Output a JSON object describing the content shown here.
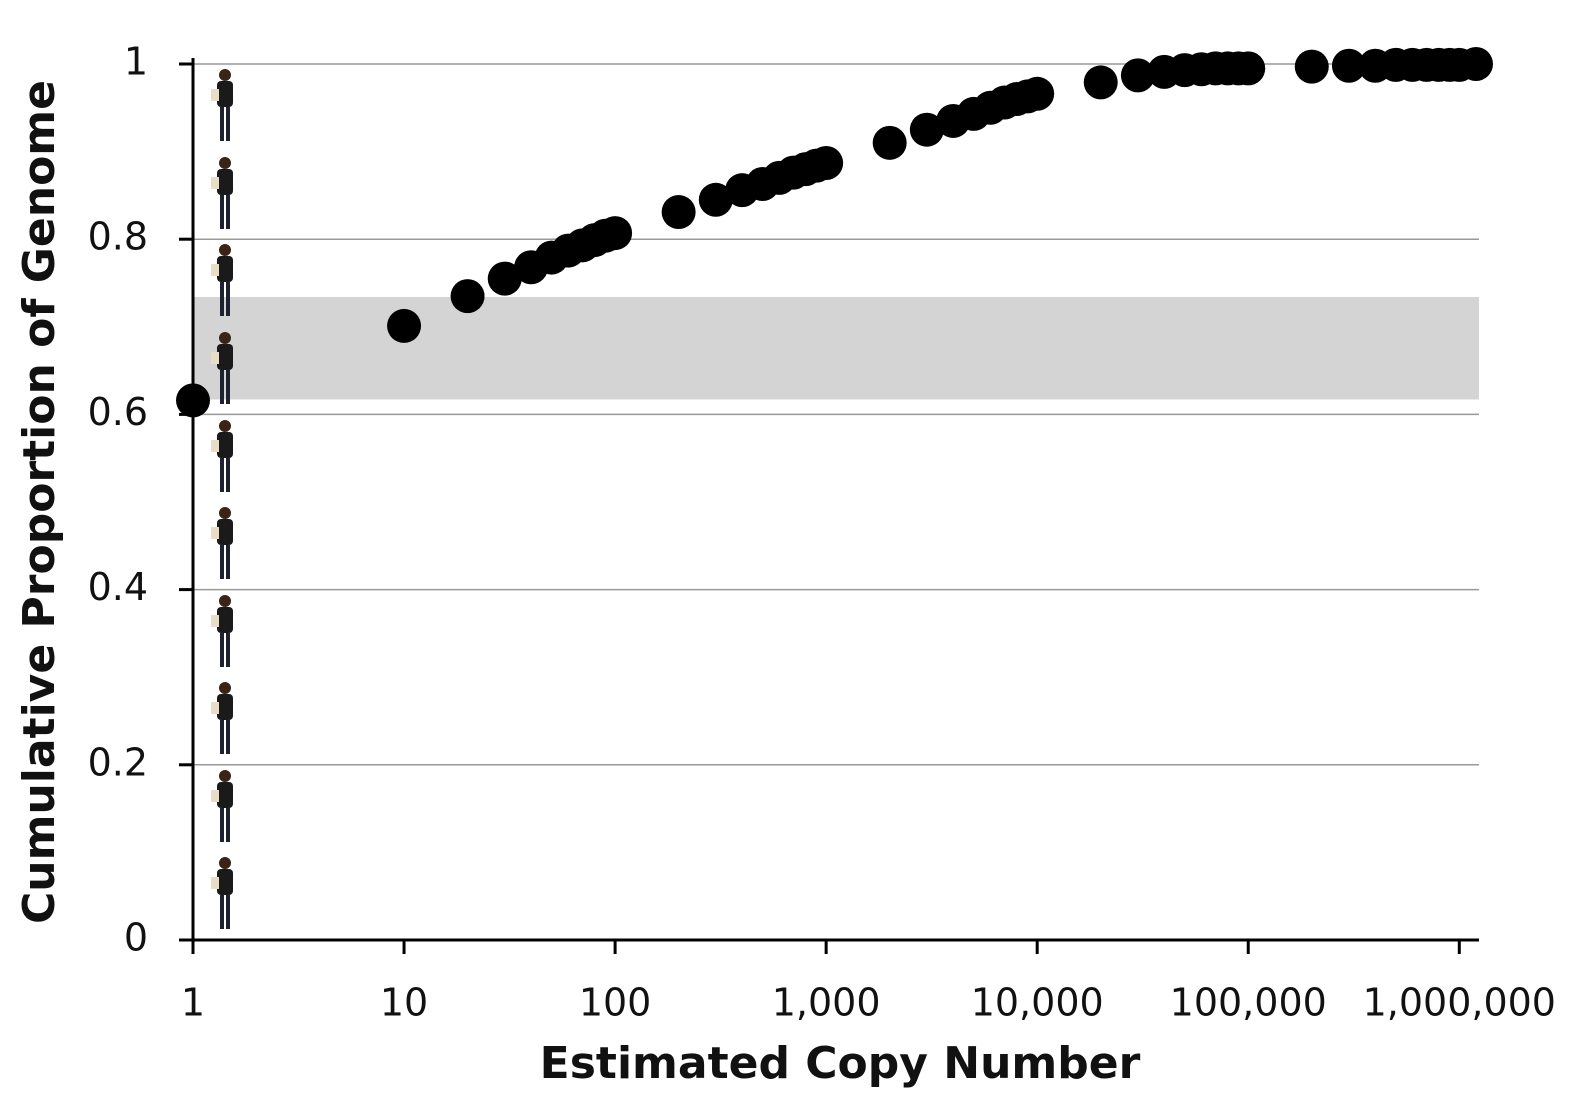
{
  "chart_data": {
    "type": "scatter",
    "x_label": "Estimated Copy Number",
    "y_label": "Cumulative Proportion of Genome",
    "log_x": true,
    "grid": true,
    "color": "#000000",
    "band": [
      0.617,
      0.734
    ],
    "band_color": "#d4d4d4",
    "x": [
      1,
      10,
      20,
      30,
      40,
      50,
      60,
      70,
      80,
      90,
      100,
      200,
      300,
      400,
      500,
      600,
      700,
      800,
      900,
      1000,
      2000,
      3000,
      4000,
      5000,
      6000,
      7000,
      8000,
      9000,
      10000,
      20000,
      30000,
      40000,
      50000,
      60000,
      70000,
      80000,
      90000,
      100000,
      200000,
      300000,
      400000,
      500000,
      600000,
      700000,
      800000,
      900000,
      1000000,
      1200000
    ],
    "values": [
      0.616,
      0.701,
      0.735,
      0.755,
      0.768,
      0.779,
      0.787,
      0.793,
      0.799,
      0.804,
      0.807,
      0.831,
      0.845,
      0.856,
      0.863,
      0.87,
      0.876,
      0.88,
      0.884,
      0.887,
      0.91,
      0.925,
      0.935,
      0.943,
      0.95,
      0.956,
      0.96,
      0.963,
      0.966,
      0.979,
      0.987,
      0.991,
      0.993,
      0.994,
      0.995,
      0.995,
      0.995,
      0.995,
      0.997,
      0.998,
      0.998,
      0.999,
      0.999,
      0.999,
      0.999,
      0.999,
      0.999,
      1
    ],
    "xlim": [
      1,
      1200000
    ],
    "ylim": [
      0,
      1
    ],
    "xticks": [
      1,
      10,
      100,
      {
        "value": 1000,
        "label": "1,000"
      },
      {
        "value": 10000,
        "label": "10,000"
      },
      {
        "value": 100000,
        "label": "100,000"
      },
      {
        "value": 1000000,
        "label": "1,000,000"
      }
    ],
    "yticks": [
      0,
      0.2,
      0.4,
      0.6,
      0.8,
      1
    ]
  }
}
